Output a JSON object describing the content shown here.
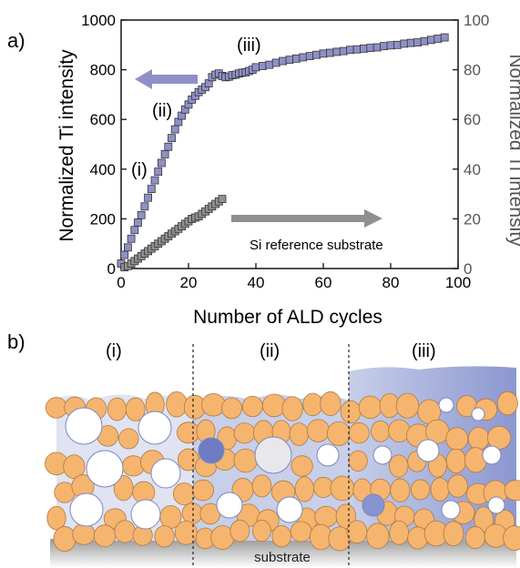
{
  "panel_a_label": "a)",
  "panel_b_label": "b)",
  "chart_data": {
    "type": "scatter",
    "xlabel": "Number of ALD cycles",
    "ylabel": "Normalized Ti intensity",
    "ylabel_right": "Normalized Ti intensity",
    "xlim": [
      0,
      100
    ],
    "ylim": [
      0,
      1000
    ],
    "ylim_right": [
      0,
      100
    ],
    "xticks": [
      "0",
      "20",
      "40",
      "60",
      "80",
      "100"
    ],
    "yticks_left": [
      "0",
      "200",
      "400",
      "600",
      "800",
      "1000"
    ],
    "yticks_right": [
      "0",
      "20",
      "40",
      "60",
      "80",
      "100"
    ],
    "grid": false,
    "annotations": [
      "(i)",
      "(ii)",
      "(iii)",
      "Si reference substrate"
    ],
    "series": [
      {
        "axis": "left",
        "color": "#9090c8",
        "x": [
          0,
          1,
          2,
          3,
          4,
          5,
          6,
          7,
          8,
          9,
          10,
          11,
          12,
          13,
          14,
          15,
          16,
          17,
          18,
          19,
          20,
          21,
          22,
          23,
          24,
          25,
          26,
          27,
          28,
          29,
          30,
          31,
          32,
          33,
          34,
          35,
          36,
          37,
          38,
          39,
          40,
          42,
          44,
          46,
          48,
          50,
          52,
          54,
          56,
          58,
          60,
          62,
          64,
          66,
          68,
          70,
          72,
          74,
          76,
          78,
          80,
          82,
          84,
          86,
          88,
          90,
          92,
          94,
          96
        ],
        "y": [
          20,
          55,
          85,
          120,
          155,
          185,
          215,
          250,
          285,
          320,
          355,
          390,
          425,
          460,
          490,
          525,
          560,
          590,
          615,
          640,
          660,
          680,
          695,
          710,
          720,
          730,
          745,
          770,
          780,
          785,
          775,
          770,
          772,
          778,
          780,
          785,
          788,
          790,
          795,
          800,
          810,
          815,
          820,
          828,
          835,
          840,
          845,
          850,
          855,
          860,
          865,
          868,
          872,
          875,
          880,
          882,
          885,
          888,
          890,
          895,
          898,
          900,
          905,
          908,
          910,
          915,
          920,
          925,
          930
        ]
      },
      {
        "axis": "right",
        "color": "#909090",
        "x": [
          1,
          2,
          3,
          4,
          5,
          6,
          7,
          8,
          9,
          10,
          11,
          12,
          13,
          14,
          15,
          16,
          17,
          18,
          19,
          20,
          21,
          22,
          23,
          24,
          25,
          26,
          27,
          28,
          29,
          30
        ],
        "y": [
          0.5,
          1,
          2,
          3,
          4,
          5,
          6,
          7,
          8,
          9,
          10,
          11,
          12,
          13,
          14,
          15,
          16,
          17,
          18,
          19,
          20,
          20.5,
          21,
          22,
          23,
          24,
          25,
          26,
          27,
          28
        ]
      }
    ]
  },
  "diagram": {
    "stages": [
      "(i)",
      "(ii)",
      "(iii)"
    ],
    "substrate_label": "substrate"
  }
}
